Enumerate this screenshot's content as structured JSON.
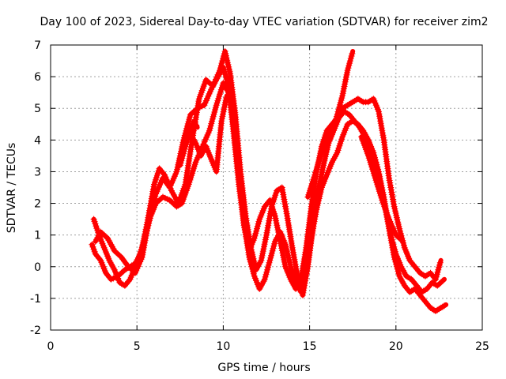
{
  "chart_data": {
    "type": "line",
    "title": "Day 100 of 2023, Sidereal Day-to-day VTEC variation (SDTVAR) for receiver zim2",
    "xlabel": "GPS time / hours",
    "ylabel": "SDTVAR / TECUs",
    "xlim": [
      0,
      25
    ],
    "ylim": [
      -2,
      7
    ],
    "xticks": [
      0,
      5,
      10,
      15,
      20,
      25
    ],
    "yticks": [
      -2,
      -1,
      0,
      1,
      2,
      3,
      4,
      5,
      6,
      7
    ],
    "grid": true,
    "legend": "none",
    "marker": "plus",
    "color": "#ff0000",
    "series": [
      {
        "x": [
          2.4,
          2.6,
          2.9,
          3.2,
          3.5,
          3.9,
          4.3,
          4.6,
          4.9,
          5.2,
          5.5,
          5.8,
          6.1,
          6.5,
          6.9,
          7.3,
          7.6,
          8.0,
          8.4,
          8.8,
          9.2,
          9.6,
          10.0,
          10.3,
          10.6,
          10.9,
          11.2,
          11.5,
          11.8,
          12.1,
          12.4,
          12.7,
          13.0,
          13.3,
          13.6,
          13.9,
          14.2,
          14.5,
          14.8,
          15.1,
          15.4,
          15.7,
          16.0,
          16.3,
          16.6,
          16.9,
          17.2,
          17.5,
          17.8,
          18.1,
          18.4,
          18.7,
          19.0,
          19.3,
          19.6,
          19.9,
          20.2,
          20.5,
          20.8,
          21.1,
          21.4,
          21.7,
          22.0,
          22.3,
          22.6,
          22.9
        ],
        "y": [
          0.7,
          0.4,
          0.2,
          -0.2,
          -0.4,
          -0.3,
          -0.1,
          0.0,
          0.1,
          0.4,
          1.0,
          1.6,
          2.0,
          2.2,
          2.1,
          1.9,
          2.0,
          2.6,
          3.3,
          3.8,
          4.3,
          5.1,
          5.8,
          5.5,
          4.6,
          3.2,
          1.4,
          0.3,
          -0.3,
          -0.7,
          -0.4,
          0.2,
          0.8,
          1.1,
          0.7,
          0.0,
          -0.5,
          -0.8,
          -0.2,
          0.9,
          1.8,
          2.5,
          2.9,
          3.3,
          3.6,
          4.1,
          4.5,
          4.6,
          4.5,
          4.3,
          4.0,
          3.6,
          3.0,
          2.2,
          1.2,
          0.3,
          -0.3,
          -0.6,
          -0.8,
          -0.7,
          -0.9,
          -1.1,
          -1.3,
          -1.4,
          -1.3,
          -1.2
        ]
      },
      {
        "x": [
          2.5,
          2.8,
          3.1,
          3.4,
          3.7,
          4.0,
          4.3,
          4.6,
          4.9,
          5.3,
          5.6,
          6.0,
          6.3,
          6.6,
          7.0,
          7.4,
          7.8,
          8.2,
          8.6,
          9.0,
          9.4,
          9.8,
          10.1,
          10.4,
          10.7,
          11.0,
          11.3,
          11.6,
          11.9,
          12.2,
          12.5,
          12.8,
          13.1,
          13.4,
          13.7,
          14.0,
          14.3,
          14.6,
          14.9,
          15.2,
          15.5,
          15.8,
          16.1,
          16.4,
          16.7,
          17.0,
          17.3,
          17.6,
          17.9,
          18.2,
          18.5,
          18.8,
          19.1,
          19.4,
          19.7,
          20.0,
          20.3,
          20.6,
          20.9,
          21.2,
          21.5,
          21.8,
          22.1,
          22.4,
          22.8
        ],
        "y": [
          1.5,
          1.0,
          0.6,
          0.2,
          -0.1,
          -0.5,
          -0.6,
          -0.4,
          0.0,
          0.6,
          1.4,
          2.6,
          3.1,
          2.9,
          2.4,
          2.0,
          2.6,
          4.0,
          5.3,
          5.9,
          5.7,
          6.2,
          6.8,
          6.1,
          4.8,
          3.0,
          1.6,
          0.6,
          -0.1,
          0.2,
          1.0,
          1.9,
          2.4,
          2.5,
          1.6,
          0.6,
          -0.3,
          -0.9,
          0.0,
          1.3,
          2.4,
          3.2,
          3.9,
          4.3,
          4.7,
          4.9,
          4.8,
          4.6,
          4.4,
          4.1,
          3.7,
          3.1,
          2.5,
          1.8,
          1.0,
          0.4,
          0.0,
          -0.3,
          -0.4,
          -0.6,
          -0.8,
          -0.7,
          -0.5,
          -0.6,
          -0.4
        ]
      },
      {
        "x": [
          2.6,
          2.9,
          3.3,
          3.7,
          4.1,
          4.5,
          4.9,
          5.3,
          5.7,
          6.1,
          6.5,
          6.9,
          7.3,
          7.7,
          8.1,
          8.5,
          8.9,
          9.3,
          9.7,
          10.0,
          10.3,
          10.6,
          10.9,
          11.2,
          11.5,
          11.8,
          12.1,
          12.4,
          12.7,
          13.0,
          13.3,
          13.6,
          13.9,
          14.2,
          14.5,
          14.8,
          15.1,
          15.4,
          15.7,
          16.0,
          16.3,
          16.6,
          16.9,
          17.2,
          17.5,
          17.8,
          18.1,
          18.4,
          18.7,
          19.0,
          19.3,
          19.6,
          19.9,
          20.2,
          20.5,
          20.8,
          21.1,
          21.4,
          21.7,
          22.0,
          22.3,
          22.6
        ],
        "y": [
          0.8,
          1.1,
          0.9,
          0.5,
          0.3,
          0.0,
          -0.2,
          0.3,
          1.5,
          2.3,
          2.8,
          2.5,
          3.0,
          4.0,
          4.8,
          5.0,
          5.1,
          5.6,
          6.0,
          6.3,
          5.7,
          4.2,
          2.6,
          1.3,
          0.5,
          0.9,
          1.5,
          1.9,
          2.1,
          1.6,
          0.8,
          0.0,
          -0.4,
          -0.7,
          -0.4,
          0.6,
          1.9,
          3.0,
          3.8,
          4.3,
          4.5,
          4.7,
          5.0,
          5.1,
          5.2,
          5.3,
          5.2,
          5.2,
          5.3,
          4.9,
          4.0,
          2.8,
          1.9,
          1.2,
          0.6,
          0.2,
          0.0,
          -0.2,
          -0.3,
          -0.2,
          -0.4,
          0.2
        ]
      },
      {
        "x": [
          8.1,
          8.4,
          8.7,
          9.0,
          9.3,
          9.6,
          9.9,
          10.2
        ],
        "y": [
          4.2,
          3.9,
          3.5,
          3.8,
          3.4,
          3.0,
          4.6,
          5.4
        ]
      },
      {
        "x": [
          14.9,
          15.3,
          15.7,
          16.1,
          16.5,
          16.9,
          17.2,
          17.5
        ],
        "y": [
          2.2,
          2.9,
          3.6,
          4.1,
          4.6,
          5.4,
          6.2,
          6.8
        ]
      },
      {
        "x": [
          18.0,
          18.4,
          18.8,
          19.2,
          19.6,
          20.0,
          20.4
        ],
        "y": [
          4.1,
          3.5,
          2.8,
          2.1,
          1.5,
          1.0,
          0.8
        ]
      },
      {
        "x": [
          7.5,
          7.8,
          8.1,
          8.3,
          8.5
        ],
        "y": [
          3.2,
          3.8,
          4.3,
          4.6,
          4.4
        ]
      }
    ]
  }
}
